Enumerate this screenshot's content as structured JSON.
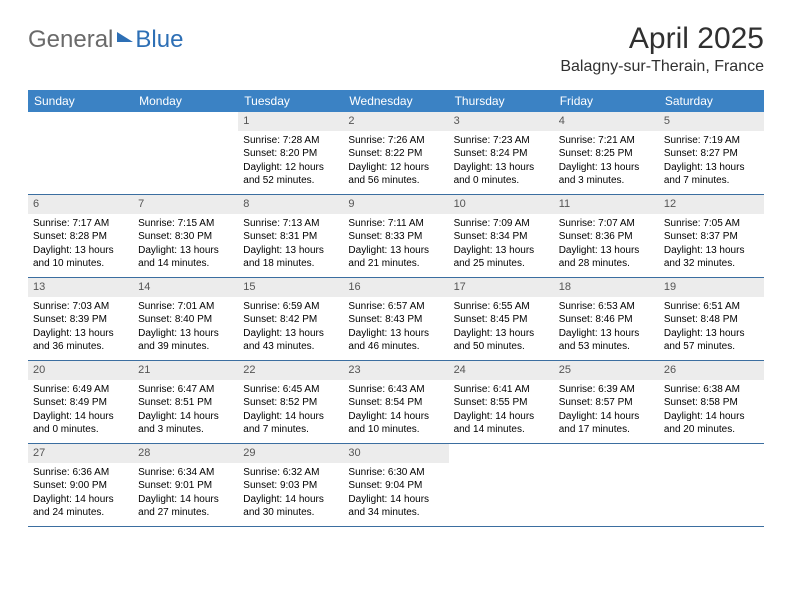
{
  "brand": {
    "part1": "General",
    "part2": "Blue"
  },
  "title": "April 2025",
  "location": "Balagny-sur-Therain, France",
  "style": {
    "header_bg": "#3b82c4",
    "header_text": "#ffffff",
    "daynum_bg": "#ececec",
    "daynum_text": "#555555",
    "body_text": "#000000",
    "rule_color": "#3b6ea0",
    "page_bg": "#ffffff",
    "month_title_fontsize": 30,
    "location_fontsize": 16,
    "dow_fontsize": 12,
    "cell_fontsize": 10
  },
  "days_of_week": [
    "Sunday",
    "Monday",
    "Tuesday",
    "Wednesday",
    "Thursday",
    "Friday",
    "Saturday"
  ],
  "weeks": [
    [
      null,
      null,
      {
        "n": "1",
        "sunrise": "7:28 AM",
        "sunset": "8:20 PM",
        "daylight": "12 hours and 52 minutes."
      },
      {
        "n": "2",
        "sunrise": "7:26 AM",
        "sunset": "8:22 PM",
        "daylight": "12 hours and 56 minutes."
      },
      {
        "n": "3",
        "sunrise": "7:23 AM",
        "sunset": "8:24 PM",
        "daylight": "13 hours and 0 minutes."
      },
      {
        "n": "4",
        "sunrise": "7:21 AM",
        "sunset": "8:25 PM",
        "daylight": "13 hours and 3 minutes."
      },
      {
        "n": "5",
        "sunrise": "7:19 AM",
        "sunset": "8:27 PM",
        "daylight": "13 hours and 7 minutes."
      }
    ],
    [
      {
        "n": "6",
        "sunrise": "7:17 AM",
        "sunset": "8:28 PM",
        "daylight": "13 hours and 10 minutes."
      },
      {
        "n": "7",
        "sunrise": "7:15 AM",
        "sunset": "8:30 PM",
        "daylight": "13 hours and 14 minutes."
      },
      {
        "n": "8",
        "sunrise": "7:13 AM",
        "sunset": "8:31 PM",
        "daylight": "13 hours and 18 minutes."
      },
      {
        "n": "9",
        "sunrise": "7:11 AM",
        "sunset": "8:33 PM",
        "daylight": "13 hours and 21 minutes."
      },
      {
        "n": "10",
        "sunrise": "7:09 AM",
        "sunset": "8:34 PM",
        "daylight": "13 hours and 25 minutes."
      },
      {
        "n": "11",
        "sunrise": "7:07 AM",
        "sunset": "8:36 PM",
        "daylight": "13 hours and 28 minutes."
      },
      {
        "n": "12",
        "sunrise": "7:05 AM",
        "sunset": "8:37 PM",
        "daylight": "13 hours and 32 minutes."
      }
    ],
    [
      {
        "n": "13",
        "sunrise": "7:03 AM",
        "sunset": "8:39 PM",
        "daylight": "13 hours and 36 minutes."
      },
      {
        "n": "14",
        "sunrise": "7:01 AM",
        "sunset": "8:40 PM",
        "daylight": "13 hours and 39 minutes."
      },
      {
        "n": "15",
        "sunrise": "6:59 AM",
        "sunset": "8:42 PM",
        "daylight": "13 hours and 43 minutes."
      },
      {
        "n": "16",
        "sunrise": "6:57 AM",
        "sunset": "8:43 PM",
        "daylight": "13 hours and 46 minutes."
      },
      {
        "n": "17",
        "sunrise": "6:55 AM",
        "sunset": "8:45 PM",
        "daylight": "13 hours and 50 minutes."
      },
      {
        "n": "18",
        "sunrise": "6:53 AM",
        "sunset": "8:46 PM",
        "daylight": "13 hours and 53 minutes."
      },
      {
        "n": "19",
        "sunrise": "6:51 AM",
        "sunset": "8:48 PM",
        "daylight": "13 hours and 57 minutes."
      }
    ],
    [
      {
        "n": "20",
        "sunrise": "6:49 AM",
        "sunset": "8:49 PM",
        "daylight": "14 hours and 0 minutes."
      },
      {
        "n": "21",
        "sunrise": "6:47 AM",
        "sunset": "8:51 PM",
        "daylight": "14 hours and 3 minutes."
      },
      {
        "n": "22",
        "sunrise": "6:45 AM",
        "sunset": "8:52 PM",
        "daylight": "14 hours and 7 minutes."
      },
      {
        "n": "23",
        "sunrise": "6:43 AM",
        "sunset": "8:54 PM",
        "daylight": "14 hours and 10 minutes."
      },
      {
        "n": "24",
        "sunrise": "6:41 AM",
        "sunset": "8:55 PM",
        "daylight": "14 hours and 14 minutes."
      },
      {
        "n": "25",
        "sunrise": "6:39 AM",
        "sunset": "8:57 PM",
        "daylight": "14 hours and 17 minutes."
      },
      {
        "n": "26",
        "sunrise": "6:38 AM",
        "sunset": "8:58 PM",
        "daylight": "14 hours and 20 minutes."
      }
    ],
    [
      {
        "n": "27",
        "sunrise": "6:36 AM",
        "sunset": "9:00 PM",
        "daylight": "14 hours and 24 minutes."
      },
      {
        "n": "28",
        "sunrise": "6:34 AM",
        "sunset": "9:01 PM",
        "daylight": "14 hours and 27 minutes."
      },
      {
        "n": "29",
        "sunrise": "6:32 AM",
        "sunset": "9:03 PM",
        "daylight": "14 hours and 30 minutes."
      },
      {
        "n": "30",
        "sunrise": "6:30 AM",
        "sunset": "9:04 PM",
        "daylight": "14 hours and 34 minutes."
      },
      null,
      null,
      null
    ]
  ],
  "labels": {
    "sunrise": "Sunrise:",
    "sunset": "Sunset:",
    "daylight": "Daylight:"
  }
}
